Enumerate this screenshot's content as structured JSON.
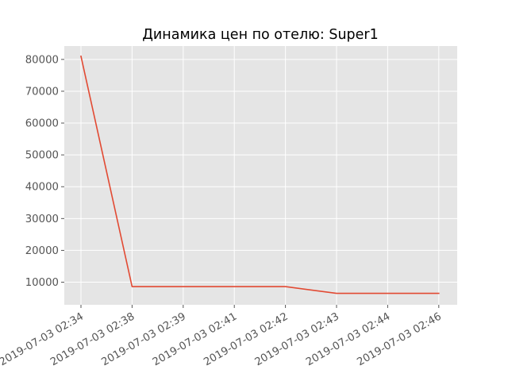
{
  "chart_data": {
    "type": "line",
    "title": "Динамика цен по отелю: Super1",
    "xlabel": "",
    "ylabel": "",
    "categories": [
      "2019-07-03 02:34",
      "2019-07-03 02:38",
      "2019-07-03 02:39",
      "2019-07-03 02:41",
      "2019-07-03 02:42",
      "2019-07-03 02:43",
      "2019-07-03 02:44",
      "2019-07-03 02:46"
    ],
    "series": [
      {
        "values": [
          81000,
          8600,
          8600,
          8600,
          8600,
          6500,
          6500,
          6500
        ],
        "color": "#E24A33"
      }
    ],
    "ylim": [
      2900,
      84200
    ],
    "yticks": [
      10000,
      20000,
      30000,
      40000,
      50000,
      60000,
      70000,
      80000
    ],
    "ytick_labels": [
      "10000",
      "20000",
      "30000",
      "40000",
      "50000",
      "60000",
      "70000",
      "80000"
    ],
    "grid": true,
    "legend": "none",
    "style": {
      "plot_background": "#E5E5E5",
      "grid_color": "#FFFFFF",
      "tick_color": "#555555"
    }
  }
}
